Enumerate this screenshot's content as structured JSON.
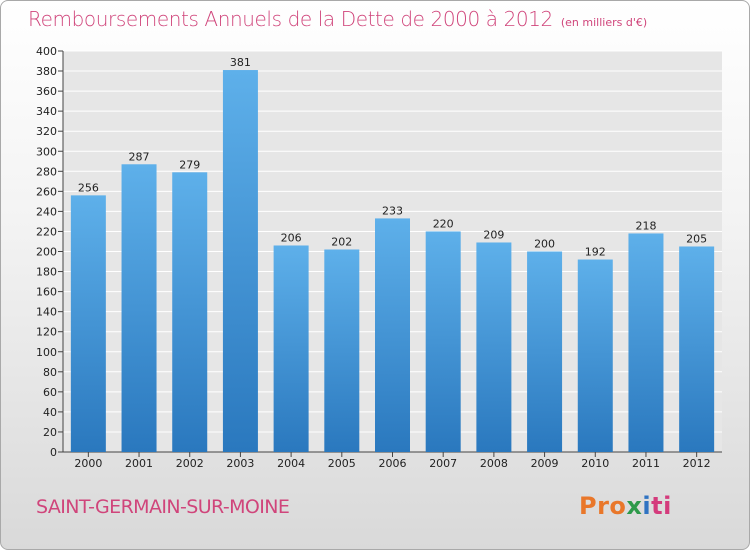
{
  "title": "Remboursements Annuels de la Dette de 2000 à 2012",
  "unit": "(en milliers d'€)",
  "commune": "SAINT-GERMAIN-SUR-MOINE",
  "brand": {
    "p1": "Pro",
    "p2": "x",
    "p3": "i",
    "p4": "ti"
  },
  "colors": {
    "title": "#d0457b",
    "bar_top": "#5eb0ea",
    "bar_bottom": "#2a78be"
  },
  "chart_data": {
    "type": "bar",
    "title": "Remboursements Annuels de la Dette de 2000 à 2012",
    "xlabel": "",
    "ylabel": "",
    "categories": [
      "2000",
      "2001",
      "2002",
      "2003",
      "2004",
      "2005",
      "2006",
      "2007",
      "2008",
      "2009",
      "2010",
      "2011",
      "2012"
    ],
    "values": [
      256,
      287,
      279,
      381,
      206,
      202,
      233,
      220,
      209,
      200,
      192,
      218,
      205
    ],
    "ylim": [
      0,
      400
    ],
    "ytick_step": 20,
    "grid": true,
    "legend": "none"
  }
}
